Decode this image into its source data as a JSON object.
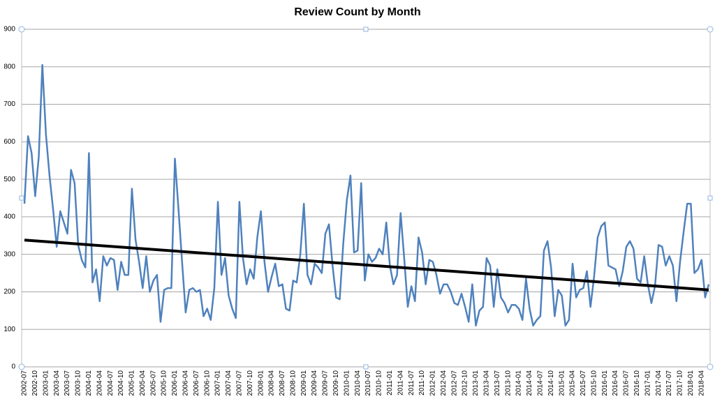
{
  "chart_data": {
    "type": "line",
    "title": "Review Count by Month",
    "categories": [
      "2002-07",
      null,
      null,
      "2002-10",
      null,
      null,
      "2003-01",
      null,
      null,
      "2003-04",
      null,
      null,
      "2003-07",
      null,
      null,
      "2003-10",
      null,
      null,
      "2004-01",
      null,
      null,
      "2004-04",
      null,
      null,
      "2004-07",
      null,
      null,
      "2004-10",
      null,
      null,
      "2005-01",
      null,
      null,
      "2005-04",
      null,
      null,
      "2005-07",
      null,
      null,
      "2005-10",
      null,
      null,
      "2006-01",
      null,
      null,
      "2006-04",
      null,
      null,
      "2006-07",
      null,
      null,
      "2006-10",
      null,
      null,
      "2007-01",
      null,
      null,
      "2007-04",
      null,
      null,
      "2007-07",
      null,
      null,
      "2007-10",
      null,
      null,
      "2008-01",
      null,
      null,
      "2008-04",
      null,
      null,
      "2008-07",
      null,
      null,
      "2008-10",
      null,
      null,
      "2009-01",
      null,
      null,
      "2009-04",
      null,
      null,
      "2009-07",
      null,
      null,
      "2009-10",
      null,
      null,
      "2010-01",
      null,
      null,
      "2010-04",
      null,
      null,
      "2010-07",
      null,
      null,
      "2010-10",
      null,
      null,
      "2011-01",
      null,
      null,
      "2011-04",
      null,
      null,
      "2011-07",
      null,
      null,
      "2011-10",
      null,
      null,
      "2012-01",
      null,
      null,
      "2012-04",
      null,
      null,
      "2012-07",
      null,
      null,
      "2012-10",
      null,
      null,
      "2013-01",
      null,
      null,
      "2013-04",
      null,
      null,
      "2013-07",
      null,
      null,
      "2013-10",
      null,
      null,
      "2014-01",
      null,
      null,
      "2014-04",
      null,
      null,
      "2014-07",
      null,
      null,
      "2014-10",
      null,
      null,
      "2015-01",
      null,
      null,
      "2015-04",
      null,
      null,
      "2015-07",
      null,
      null,
      "2015-10",
      null,
      null,
      "2016-01",
      null,
      null,
      "2016-04",
      null,
      null,
      "2016-07",
      null,
      null,
      "2016-10",
      null,
      null,
      "2017-01",
      null,
      null,
      "2017-04",
      null,
      null,
      "2017-07",
      null,
      null,
      "2017-10",
      null,
      null,
      "2018-01",
      null,
      null,
      "2018-04",
      null,
      null
    ],
    "series": [
      {
        "color": "#4f81bd",
        "values": [
          435,
          615,
          570,
          455,
          560,
          805,
          620,
          510,
          420,
          320,
          415,
          385,
          355,
          525,
          490,
          325,
          285,
          265,
          570,
          225,
          260,
          175,
          295,
          270,
          290,
          285,
          205,
          280,
          245,
          245,
          475,
          340,
          280,
          210,
          295,
          200,
          230,
          245,
          120,
          205,
          210,
          210,
          555,
          420,
          280,
          145,
          205,
          210,
          200,
          205,
          135,
          155,
          125,
          210,
          440,
          245,
          290,
          190,
          155,
          130,
          440,
          290,
          220,
          260,
          235,
          345,
          415,
          280,
          200,
          240,
          275,
          215,
          220,
          155,
          150,
          230,
          225,
          300,
          435,
          245,
          220,
          275,
          265,
          250,
          355,
          380,
          270,
          185,
          180,
          330,
          445,
          510,
          305,
          310,
          490,
          230,
          300,
          280,
          290,
          315,
          300,
          385,
          270,
          220,
          245,
          410,
          290,
          160,
          215,
          175,
          345,
          305,
          220,
          285,
          280,
          245,
          195,
          220,
          220,
          200,
          170,
          165,
          195,
          160,
          120,
          220,
          110,
          150,
          160,
          290,
          270,
          160,
          260,
          185,
          170,
          145,
          165,
          165,
          155,
          125,
          235,
          155,
          110,
          125,
          135,
          310,
          335,
          265,
          135,
          205,
          190,
          110,
          125,
          275,
          185,
          205,
          210,
          255,
          160,
          240,
          345,
          375,
          385,
          270,
          265,
          260,
          215,
          255,
          320,
          335,
          315,
          235,
          225,
          295,
          220,
          170,
          215,
          325,
          320,
          270,
          295,
          270,
          175,
          280,
          360,
          435,
          435,
          250,
          260,
          285,
          185,
          220
        ]
      }
    ],
    "trendline": {
      "color": "#000000",
      "values": [
        338,
        205
      ]
    },
    "ylim": [
      0,
      900
    ],
    "yticks": [
      0,
      100,
      200,
      300,
      400,
      500,
      600,
      700,
      800,
      900
    ],
    "grid": true
  }
}
